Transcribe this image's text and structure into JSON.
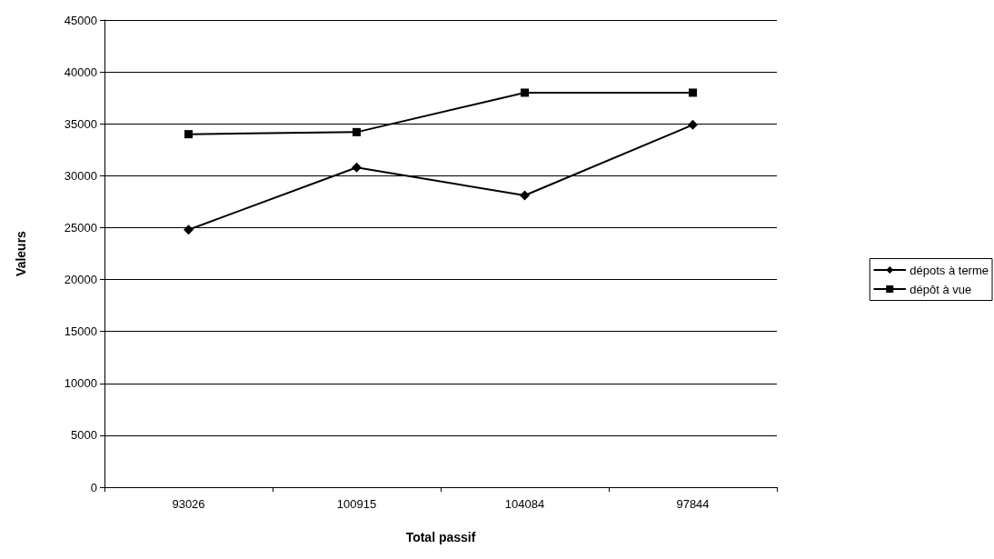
{
  "chart_data": {
    "type": "line",
    "xlabel": "Total passif",
    "ylabel": "Valeurs",
    "categories": [
      "93026",
      "100915",
      "104084",
      "97844"
    ],
    "series": [
      {
        "name": "dépots à terme",
        "color": "#000000",
        "marker": "diamond",
        "values": [
          24800,
          30800,
          28100,
          34900
        ]
      },
      {
        "name": "dépôt à vue",
        "color": "#000000",
        "marker": "square",
        "values": [
          34000,
          34200,
          38000,
          38000
        ]
      }
    ],
    "ylim": [
      0,
      45000
    ],
    "yticks": [
      0,
      5000,
      10000,
      15000,
      20000,
      25000,
      30000,
      35000,
      40000,
      45000
    ],
    "grid": "y",
    "legend": "right",
    "line_style": "solid"
  }
}
